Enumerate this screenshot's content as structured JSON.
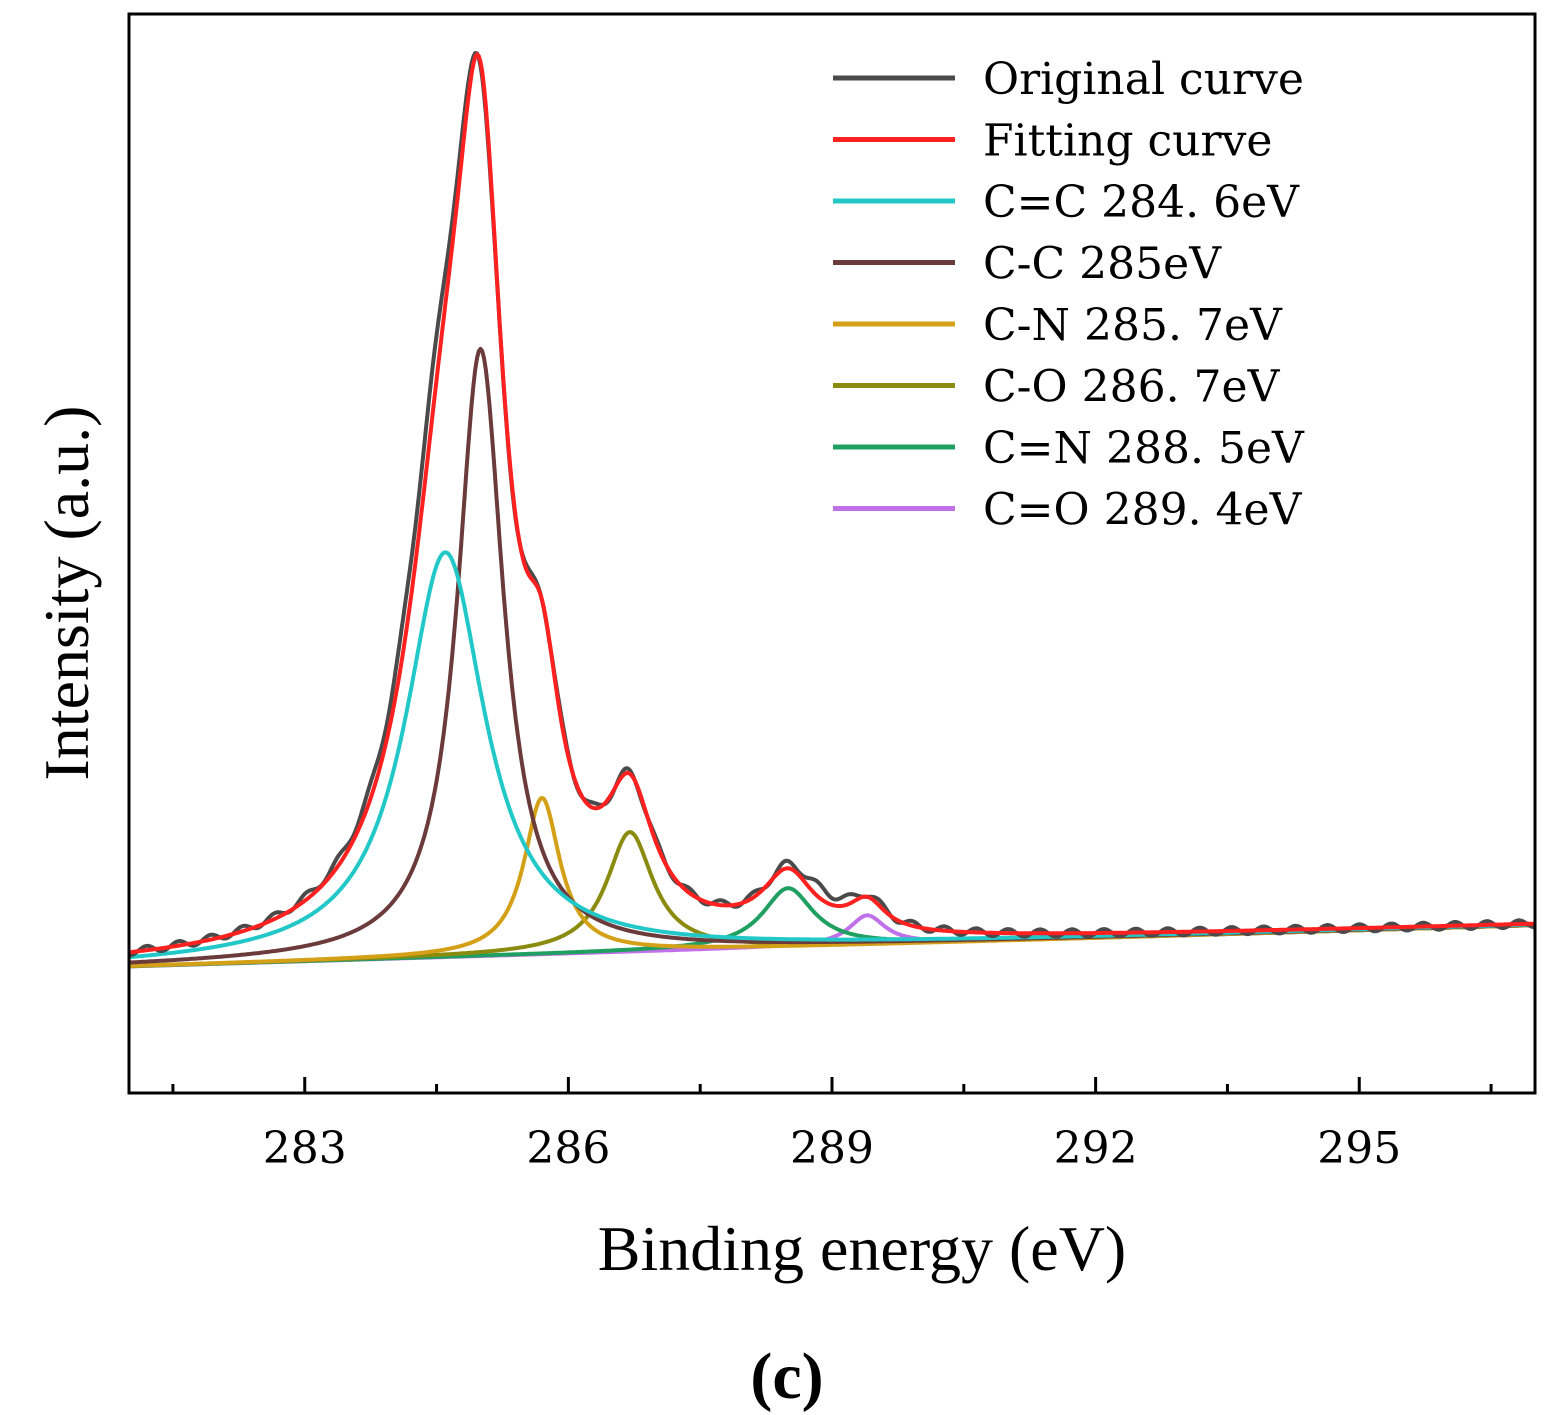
{
  "chart_data": {
    "type": "line",
    "panel_label": "(c)",
    "xlabel": "Binding energy (eV)",
    "ylabel": "Intensity (a.u.)",
    "xlim": [
      281,
      297
    ],
    "ylim": [
      0,
      1.0
    ],
    "x_major_ticks": [
      283,
      286,
      289,
      292,
      295
    ],
    "x_tick_labels": [
      "283",
      "286",
      "289",
      "292",
      "295"
    ],
    "x_minor_ticks": [
      281.5,
      284.5,
      287.5,
      290.5,
      293.5,
      296.5
    ],
    "grid": false,
    "legend_position": "top-right",
    "baseline": {
      "start": 0.08,
      "slope": 0.0028
    },
    "series": [
      {
        "name": "Original curve",
        "color": "#4a4a4a",
        "kind": "original"
      },
      {
        "name": "Fitting curve",
        "color": "#ff2020",
        "kind": "fit"
      },
      {
        "name": "C=C  284. 6eV",
        "color": "#22c8c8",
        "center": 284.6,
        "height": 0.44,
        "width": 0.55,
        "shape": "lorentz"
      },
      {
        "name": "C-C  285eV",
        "color": "#6b3a3a",
        "center": 285.0,
        "height": 0.66,
        "width": 0.32,
        "shape": "lorentz"
      },
      {
        "name": "C-N  285. 7eV",
        "color": "#d4a017",
        "center": 285.7,
        "height": 0.17,
        "width": 0.25,
        "shape": "lorentz"
      },
      {
        "name": "C-O  286. 7eV",
        "color": "#8b8b10",
        "center": 286.7,
        "height": 0.13,
        "width": 0.32,
        "shape": "lorentz"
      },
      {
        "name": "C=N  288. 5eV",
        "color": "#20a060",
        "center": 288.5,
        "height": 0.064,
        "width": 0.35,
        "shape": "lorentz"
      },
      {
        "name": "C=O  289. 4eV",
        "color": "#c070e8",
        "center": 289.4,
        "height": 0.032,
        "width": 0.25,
        "shape": "lorentz"
      }
    ]
  }
}
